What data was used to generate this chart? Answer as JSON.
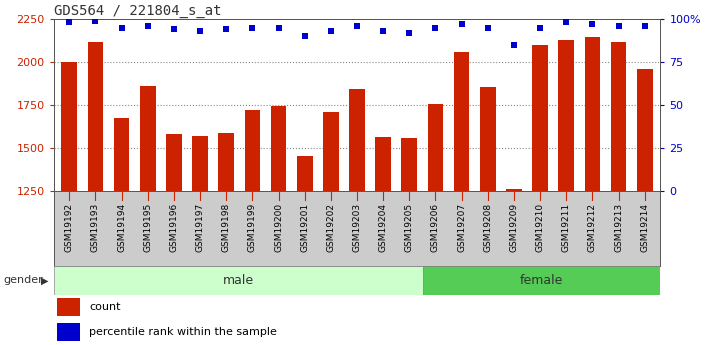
{
  "title": "GDS564 / 221804_s_at",
  "samples": [
    "GSM19192",
    "GSM19193",
    "GSM19194",
    "GSM19195",
    "GSM19196",
    "GSM19197",
    "GSM19198",
    "GSM19199",
    "GSM19200",
    "GSM19201",
    "GSM19202",
    "GSM19203",
    "GSM19204",
    "GSM19205",
    "GSM19206",
    "GSM19207",
    "GSM19208",
    "GSM19209",
    "GSM19210",
    "GSM19211",
    "GSM19212",
    "GSM19213",
    "GSM19214"
  ],
  "counts": [
    1998,
    2115,
    1675,
    1860,
    1585,
    1570,
    1590,
    1725,
    1745,
    1455,
    1710,
    1845,
    1565,
    1560,
    1755,
    2060,
    1855,
    1265,
    2100,
    2130,
    2145,
    2115,
    1960
  ],
  "percentile_ranks": [
    98,
    99,
    95,
    96,
    94,
    93,
    94,
    95,
    95,
    90,
    93,
    96,
    93,
    92,
    95,
    97,
    95,
    85,
    95,
    98,
    97,
    96,
    96
  ],
  "male_count": 14,
  "female_count": 9,
  "ymin": 1250,
  "ymax": 2250,
  "yticks": [
    1250,
    1500,
    1750,
    2000,
    2250
  ],
  "right_yticks": [
    0,
    25,
    50,
    75,
    100
  ],
  "right_yticklabels": [
    "0",
    "25",
    "50",
    "75",
    "100%"
  ],
  "bar_color": "#cc2200",
  "dot_color": "#0000cc",
  "male_bg": "#ccffcc",
  "female_bg": "#55cc55",
  "xtick_bg": "#cccccc",
  "grid_color": "#888888",
  "title_color": "#333333",
  "tick_label_color": "#cc2200",
  "right_tick_color": "#0000cc"
}
